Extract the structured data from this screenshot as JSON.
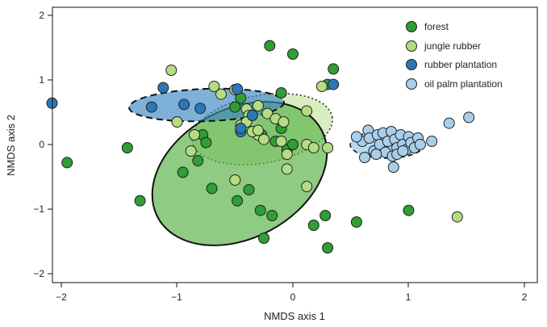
{
  "chart_data": {
    "type": "scatter",
    "xlabel": "NMDS axis 1",
    "ylabel": "NMDS axis 2",
    "xlim": [
      -2.2,
      2.1
    ],
    "ylim": [
      -2.15,
      2.1
    ],
    "xticks": [
      -2,
      -1,
      0,
      1,
      2
    ],
    "yticks": [
      -2,
      -1,
      0,
      1,
      2
    ],
    "xtick_labels": [
      "−2",
      "−1",
      "0",
      "1",
      "2"
    ],
    "ytick_labels": [
      "−2",
      "−1",
      "0",
      "1",
      "2"
    ],
    "grid": false,
    "legend_position": "top-right",
    "series": [
      {
        "name": "forest",
        "color": "#2e9e35",
        "x": [
          -0.2,
          0.0,
          -0.5,
          0.35,
          0.3,
          -0.1,
          -1.43,
          -1.95,
          -0.78,
          -0.82,
          -0.95,
          -0.7,
          -0.75,
          -0.38,
          -0.48,
          -0.27,
          -0.15,
          -0.05,
          0.0,
          -0.28,
          -1.32,
          -0.25,
          -0.18,
          0.18,
          0.3,
          0.55,
          1.0,
          0.28,
          -0.1,
          -0.45
        ],
        "y": [
          1.53,
          1.4,
          0.58,
          1.17,
          0.93,
          0.8,
          -0.05,
          -0.28,
          0.15,
          -0.25,
          -0.43,
          -0.68,
          0.03,
          -0.7,
          -0.87,
          0.15,
          0.05,
          -0.08,
          0.0,
          -1.02,
          -0.87,
          -1.45,
          -1.1,
          -1.25,
          -1.6,
          -1.2,
          -1.02,
          -1.1,
          0.25,
          0.72
        ]
      },
      {
        "name": "jungle rubber",
        "color": "#b4dc82",
        "x": [
          -1.05,
          -0.68,
          -0.5,
          -0.4,
          -0.3,
          -0.38,
          -0.45,
          -0.22,
          -0.15,
          -0.08,
          -0.3,
          -0.35,
          -0.25,
          -0.1,
          0.12,
          0.18,
          0.12,
          -0.4,
          -0.3,
          -0.05,
          0.25,
          -1.0,
          -0.85,
          -0.88,
          -0.5,
          -0.05,
          0.12,
          0.3,
          1.42,
          -0.62
        ],
        "y": [
          1.15,
          0.9,
          0.85,
          0.55,
          0.6,
          0.45,
          0.3,
          0.48,
          0.4,
          0.35,
          0.15,
          0.2,
          0.08,
          0.05,
          0.0,
          -0.05,
          0.52,
          0.35,
          0.22,
          -0.38,
          0.9,
          0.35,
          0.15,
          -0.1,
          -0.55,
          -0.15,
          -0.65,
          -0.05,
          -1.12,
          0.78
        ]
      },
      {
        "name": "rubber plantation",
        "color": "#2b78b8",
        "x": [
          -2.08,
          -1.12,
          -1.22,
          -0.94,
          -0.8,
          -0.48,
          -0.45,
          -0.35,
          0.35,
          -0.45
        ],
        "y": [
          0.64,
          0.88,
          0.58,
          0.62,
          0.56,
          0.86,
          0.2,
          0.45,
          0.93,
          0.25
        ]
      },
      {
        "name": "oil palm plantation",
        "color": "#a8cfea",
        "x": [
          0.6,
          0.65,
          0.66,
          0.7,
          0.73,
          0.75,
          0.78,
          0.8,
          0.82,
          0.85,
          0.86,
          0.88,
          0.9,
          0.9,
          0.93,
          0.95,
          0.98,
          1.0,
          1.02,
          1.05,
          1.08,
          1.1,
          0.55,
          0.62,
          0.72,
          0.87,
          1.2,
          1.35,
          1.52,
          0.95
        ],
        "y": [
          0.05,
          0.22,
          0.1,
          -0.1,
          0.15,
          0.0,
          0.18,
          -0.12,
          0.05,
          0.2,
          -0.18,
          0.08,
          -0.05,
          -0.15,
          0.15,
          0.0,
          -0.08,
          0.12,
          0.03,
          -0.05,
          0.1,
          0.0,
          0.12,
          -0.2,
          -0.15,
          -0.35,
          0.05,
          0.33,
          0.42,
          -0.1
        ]
      }
    ]
  }
}
